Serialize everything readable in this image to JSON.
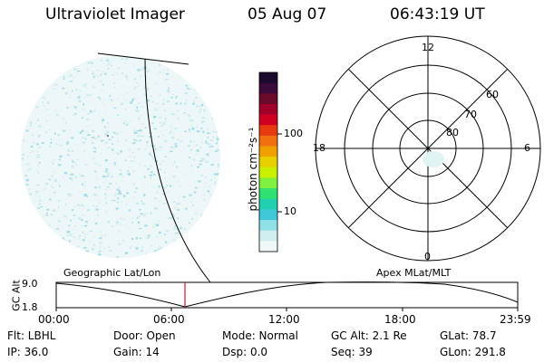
{
  "header": {
    "title": "Ultraviolet Imager",
    "date": "05 Aug 07",
    "time": "06:43:19 UT"
  },
  "colorbar": {
    "unit_label": "photon cm⁻²s⁻¹",
    "ticks": [
      "100",
      "10"
    ],
    "colors": [
      "#1a0a2e",
      "#3a0a3a",
      "#6a0a2a",
      "#a0002a",
      "#d00020",
      "#e83a10",
      "#f07010",
      "#f0a000",
      "#e8d000",
      "#c8f000",
      "#80f040",
      "#30e070",
      "#20d0b0",
      "#40c8d8",
      "#90e0e8",
      "#d0eef0",
      "#f0f8f8"
    ]
  },
  "polar_plot": {
    "hour_labels": [
      "12",
      "18",
      "6",
      "0"
    ],
    "lat_labels": [
      "60",
      "70",
      "80"
    ]
  },
  "timeline": {
    "left_label": "Geographic Lat/Lon",
    "right_label": "Apex MLat/MLT",
    "axis_title": "GC Alt",
    "y_max": "9.0",
    "y_min": "1.8",
    "x_ticks": [
      "00:00",
      "06:00",
      "12:00",
      "18:00",
      "23:59"
    ]
  },
  "status": {
    "flt": "Flt: LBHL",
    "door": "Door: Open",
    "mode": "Mode: Normal",
    "gc_alt": "GC Alt: 2.1 Re",
    "glat": "GLat:  78.7",
    "ip": "IP: 36.0",
    "gain": "Gain: 14",
    "dsp": "Dsp:     0.0",
    "seq": "Seq: 39",
    "glon": "GLon: 291.8"
  }
}
